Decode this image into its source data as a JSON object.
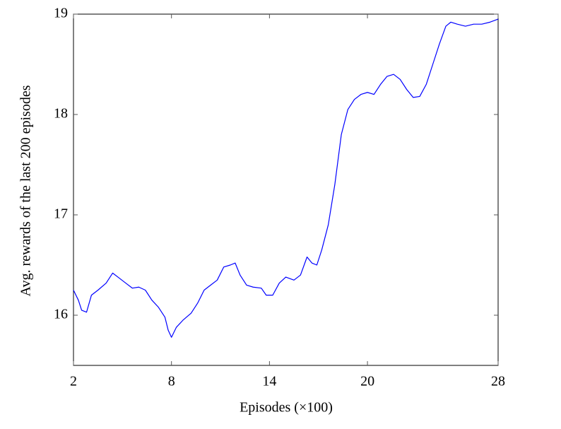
{
  "chart_data": {
    "type": "line",
    "xlabel": "Episodes (×100)",
    "ylabel": "Avg. rewards of the last 200 episodes",
    "x": [
      2.0,
      2.3,
      2.5,
      2.8,
      3.1,
      3.5,
      4.0,
      4.4,
      4.8,
      5.2,
      5.6,
      6.0,
      6.4,
      6.8,
      7.2,
      7.6,
      7.8,
      8.0,
      8.3,
      8.7,
      9.2,
      9.6,
      10.0,
      10.4,
      10.8,
      11.2,
      11.6,
      11.9,
      12.2,
      12.6,
      13.0,
      13.5,
      13.8,
      14.2,
      14.6,
      15.0,
      15.5,
      15.9,
      16.3,
      16.6,
      16.9,
      17.2,
      17.6,
      18.0,
      18.4,
      18.8,
      19.2,
      19.6,
      20.0,
      20.4,
      20.8,
      21.2,
      21.6,
      22.0,
      22.4,
      22.8,
      23.2,
      23.6,
      24.0,
      24.4,
      24.8,
      25.1,
      25.5,
      26.0,
      26.5,
      27.0,
      27.5,
      28.0
    ],
    "values": [
      16.25,
      16.15,
      16.05,
      16.03,
      16.2,
      16.25,
      16.32,
      16.42,
      16.37,
      16.32,
      16.27,
      16.28,
      16.25,
      16.15,
      16.08,
      15.98,
      15.85,
      15.78,
      15.88,
      15.95,
      16.02,
      16.12,
      16.25,
      16.3,
      16.35,
      16.48,
      16.5,
      16.52,
      16.4,
      16.3,
      16.28,
      16.27,
      16.2,
      16.2,
      16.32,
      16.38,
      16.35,
      16.4,
      16.58,
      16.52,
      16.5,
      16.65,
      16.9,
      17.3,
      17.8,
      18.05,
      18.15,
      18.2,
      18.22,
      18.2,
      18.3,
      18.38,
      18.4,
      18.35,
      18.25,
      18.17,
      18.18,
      18.3,
      18.5,
      18.7,
      18.88,
      18.92,
      18.9,
      18.88,
      18.9,
      18.9,
      18.92,
      18.95
    ],
    "color": "#0000ff",
    "xlim": [
      2,
      28
    ],
    "xticks": [
      2,
      8,
      14,
      20,
      28
    ],
    "ylim": [
      15.5,
      19
    ],
    "yticks": [
      16,
      17,
      18,
      19
    ]
  }
}
